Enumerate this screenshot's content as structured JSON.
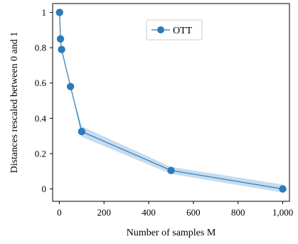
{
  "chart_data": {
    "type": "line",
    "xlabel": "Number of samples M",
    "ylabel": "Distances rescaled between 0 and 1",
    "xlim": [
      -30,
      1030
    ],
    "ylim": [
      -0.07,
      1.05
    ],
    "x_ticks": [
      0,
      200,
      400,
      600,
      800,
      1000
    ],
    "x_tick_labels": [
      "0",
      "200",
      "400",
      "600",
      "800",
      "1,000"
    ],
    "y_ticks": [
      0,
      0.2,
      0.4,
      0.6,
      0.8,
      1
    ],
    "y_tick_labels": [
      "0",
      "0.2",
      "0.4",
      "0.6",
      "0.8",
      "1"
    ],
    "grid": false,
    "legend_position": "top-right",
    "series": [
      {
        "name": "OTT",
        "color": "#2b7bba",
        "band_color": "#c6dcee",
        "x": [
          1,
          5,
          10,
          50,
          100,
          500,
          1000
        ],
        "y": [
          1.0,
          0.85,
          0.79,
          0.58,
          0.325,
          0.105,
          0.0
        ],
        "upper": [
          1.0,
          0.85,
          0.79,
          0.58,
          0.355,
          0.125,
          0.025
        ],
        "lower": [
          1.0,
          0.85,
          0.79,
          0.58,
          0.295,
          0.085,
          -0.02
        ]
      }
    ]
  }
}
